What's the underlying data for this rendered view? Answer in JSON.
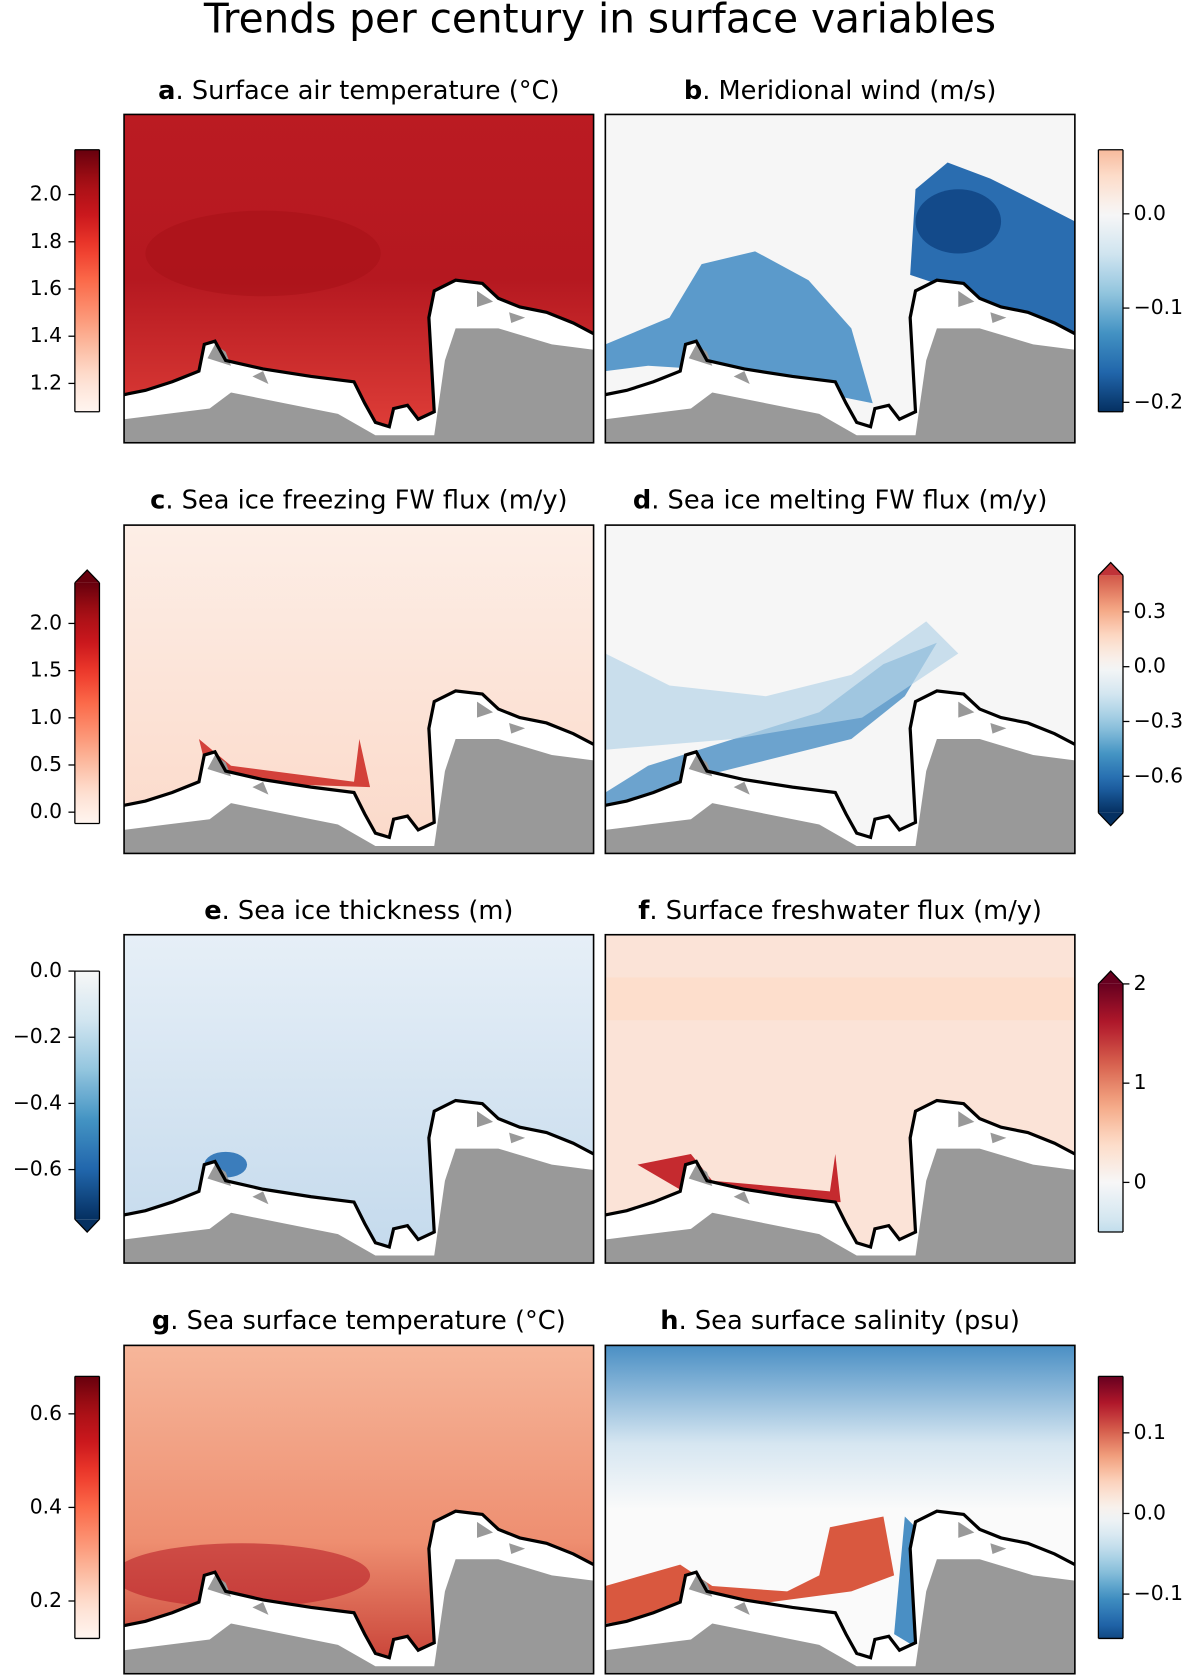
{
  "title": "Trends per century in surface variables",
  "chart_data": [
    {
      "type": "heatmap",
      "label": "a",
      "title": ". Surface air temperature (°C)",
      "cmap": "Reds",
      "extend": "neither",
      "colorbar": "left",
      "clim": [
        1.08,
        2.19
      ],
      "cticks": [
        1.2,
        1.4,
        1.6,
        1.8,
        {
          "value": 2.0,
          "label": "2.0"
        }
      ]
    },
    {
      "type": "heatmap",
      "label": "b",
      "title": ". Meridional wind (m/s)",
      "cmap": "RdBu_r",
      "extend": "neither",
      "colorbar": "right",
      "clim": [
        -0.21,
        0.068
      ],
      "cticks": [
        {
          "value": 0.0,
          "label": "0.0"
        },
        {
          "value": -0.1,
          "label": "−0.1"
        },
        {
          "value": -0.2,
          "label": "−0.2"
        }
      ]
    },
    {
      "type": "heatmap",
      "label": "c",
      "title": ". Sea ice freezing FW flux (m/y)",
      "cmap": "Reds",
      "extend": "max",
      "colorbar": "left",
      "clim": [
        -0.12,
        2.43
      ],
      "cticks": [
        {
          "value": 0.0,
          "label": "0.0"
        },
        0.5,
        {
          "value": 1.0,
          "label": "1.0"
        },
        1.5,
        {
          "value": 2.0,
          "label": "2.0"
        }
      ]
    },
    {
      "type": "heatmap",
      "label": "d",
      "title": ". Sea ice melting FW flux (m/y)",
      "cmap": "RdBu_r",
      "extend": "both",
      "colorbar": "right",
      "clim": [
        -0.8,
        0.5
      ],
      "cticks": [
        0.3,
        {
          "value": 0.0,
          "label": "0.0"
        },
        {
          "value": -0.3,
          "label": "−0.3"
        },
        {
          "value": -0.6,
          "label": "−0.6"
        }
      ]
    },
    {
      "type": "heatmap",
      "label": "e",
      "title": ". Sea ice thickness (m)",
      "cmap": "RdBu_r",
      "extend": "min",
      "colorbar": "left",
      "clim": [
        -0.75,
        0.0
      ],
      "cticks": [
        {
          "value": 0.0,
          "label": "0.0"
        },
        {
          "value": -0.2,
          "label": "−0.2"
        },
        {
          "value": -0.4,
          "label": "−0.4"
        },
        {
          "value": -0.6,
          "label": "−0.6"
        }
      ]
    },
    {
      "type": "heatmap",
      "label": "f",
      "title": ". Surface freshwater flux (m/y)",
      "cmap": "RdBu_r",
      "extend": "max",
      "colorbar": "right",
      "clim": [
        -0.5,
        2.0
      ],
      "cticks": [
        2,
        1,
        0
      ]
    },
    {
      "type": "heatmap",
      "label": "g",
      "title": ". Sea surface temperature (°C)",
      "cmap": "Reds",
      "extend": "neither",
      "colorbar": "left",
      "clim": [
        0.12,
        0.68
      ],
      "cticks": [
        0.6,
        0.4,
        0.2
      ]
    },
    {
      "type": "heatmap",
      "label": "h",
      "title": ". Sea surface salinity (psu)",
      "cmap": "RdBu_r",
      "extend": "neither",
      "colorbar": "right",
      "clim": [
        -0.155,
        0.17
      ],
      "cticks": [
        0.1,
        {
          "value": 0.0,
          "label": "0.0"
        },
        {
          "value": -0.1,
          "label": "−0.1"
        }
      ]
    }
  ]
}
